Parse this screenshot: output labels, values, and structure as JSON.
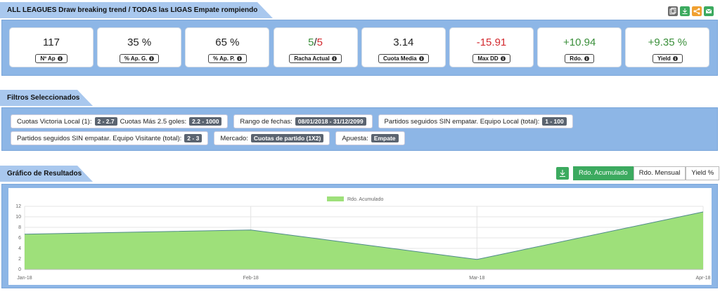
{
  "header": {
    "title": "ALL LEAGUES Draw breaking trend / TODAS las LIGAS Empate rompiendo racha"
  },
  "stats": [
    {
      "parts": [
        {
          "text": "117"
        }
      ],
      "label": "Nº Ap"
    },
    {
      "parts": [
        {
          "text": "35 %"
        }
      ],
      "label": "% Ap. G."
    },
    {
      "parts": [
        {
          "text": "65 %"
        }
      ],
      "label": "% Ap. P."
    },
    {
      "parts": [
        {
          "text": "5",
          "color": "#3a8f3a"
        },
        {
          "text": "/"
        },
        {
          "text": "5",
          "color": "#d32a2f"
        }
      ],
      "label": "Racha Actual"
    },
    {
      "parts": [
        {
          "text": "3.14"
        }
      ],
      "label": "Cuota Media"
    },
    {
      "parts": [
        {
          "text": "-15.91",
          "color": "#d32a2f"
        }
      ],
      "label": "Max DD"
    },
    {
      "parts": [
        {
          "text": "+10.94",
          "color": "#3a8f3a"
        }
      ],
      "label": "Rdo."
    },
    {
      "parts": [
        {
          "text": "+9.35 %",
          "color": "#3a8f3a"
        }
      ],
      "label": "Yield"
    }
  ],
  "filters": {
    "title": "Filtros Seleccionados",
    "items": [
      [
        {
          "text": "Cuotas Victoria Local (1):"
        },
        {
          "badge": "2 - 2.7"
        },
        {
          "text": "Cuotas Más 2.5 goles:"
        },
        {
          "badge": "2.2 - 1000"
        }
      ],
      [
        {
          "text": "Rango de fechas:"
        },
        {
          "badge": "08/01/2018 - 31/12/2099"
        }
      ],
      [
        {
          "text": "Partidos seguidos SIN empatar. Equipo Local (total):"
        },
        {
          "badge": "1 - 100"
        }
      ],
      [
        {
          "text": "Partidos seguidos SIN empatar. Equipo Visitante (total):"
        },
        {
          "badge": "2 - 3"
        }
      ],
      [
        {
          "text": "Mercado:"
        },
        {
          "badge": "Cuotas de partido (1X2)"
        }
      ],
      [
        {
          "text": "Apuesta:"
        },
        {
          "badge": "Empate"
        }
      ]
    ]
  },
  "results": {
    "title": "Gráfico de Resultados",
    "tabs": [
      "Rdo. Acumulado",
      "Rdo. Mensual",
      "Yield %"
    ],
    "active": 0
  },
  "chart_data": {
    "type": "area",
    "categories": [
      "Jan-18",
      "Feb-18",
      "Mar-18",
      "Apr-18"
    ],
    "series": [
      {
        "name": "Rdo. Acumulado",
        "color": "#9ee07a",
        "line_color": "#4f8a8b",
        "values": [
          6.7,
          7.5,
          1.9,
          10.94
        ]
      }
    ],
    "ylim": [
      0,
      12
    ],
    "yticks": [
      0,
      2,
      4,
      6,
      8,
      10,
      12
    ],
    "grid": true
  }
}
